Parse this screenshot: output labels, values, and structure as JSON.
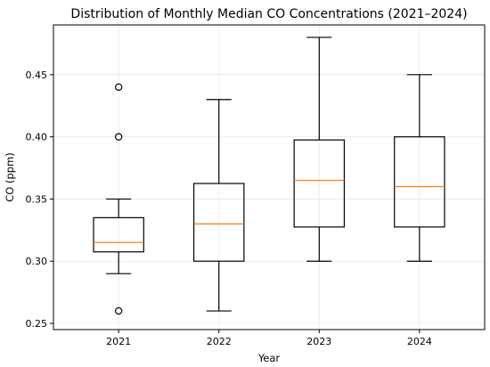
{
  "chart_data": {
    "type": "box",
    "title": "Distribution of Monthly Median CO Concentrations (2021–2024)",
    "xlabel": "Year",
    "ylabel": "CO (ppm)",
    "ylim": [
      0.245,
      0.49
    ],
    "yticks": [
      "0.25",
      "0.30",
      "0.35",
      "0.40",
      "0.45"
    ],
    "grid": true,
    "colors": {
      "box": "#000000",
      "median": "#ff7f0e",
      "grid": "#e6e6e6"
    },
    "boxes": [
      {
        "category": "2021",
        "whisker_low": 0.29,
        "q1": 0.3075,
        "median": 0.315,
        "q3": 0.335,
        "whisker_high": 0.35,
        "outliers": [
          0.26,
          0.4,
          0.44
        ]
      },
      {
        "category": "2022",
        "whisker_low": 0.26,
        "q1": 0.3,
        "median": 0.33,
        "q3": 0.3625,
        "whisker_high": 0.43,
        "outliers": []
      },
      {
        "category": "2023",
        "whisker_low": 0.3,
        "q1": 0.3275,
        "median": 0.365,
        "q3": 0.3975,
        "whisker_high": 0.48,
        "outliers": []
      },
      {
        "category": "2024",
        "whisker_low": 0.3,
        "q1": 0.3275,
        "median": 0.36,
        "q3": 0.4,
        "whisker_high": 0.45,
        "outliers": []
      }
    ]
  }
}
